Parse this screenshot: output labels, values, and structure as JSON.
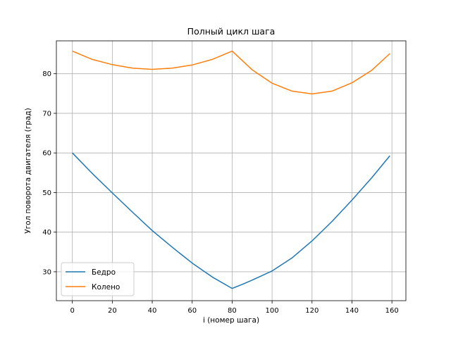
{
  "chart_data": {
    "type": "line",
    "title": "Полный цикл шага",
    "xlabel": "i (номер шага)",
    "ylabel": "Угол поворота двигателя (град)",
    "xlim": [
      -8,
      167
    ],
    "ylim": [
      22.7,
      88.3
    ],
    "xticks": [
      0,
      20,
      40,
      60,
      80,
      100,
      120,
      140,
      160
    ],
    "yticks": [
      30,
      40,
      50,
      60,
      70,
      80
    ],
    "grid": true,
    "legend_position": "lower-left",
    "series": [
      {
        "name": "Бедро",
        "color": "#1f77b4",
        "x": [
          0,
          10,
          20,
          30,
          40,
          50,
          60,
          70,
          80,
          85,
          90,
          100,
          110,
          120,
          130,
          140,
          150,
          159
        ],
        "y": [
          60.0,
          54.8,
          49.9,
          45.1,
          40.4,
          36.2,
          32.2,
          28.7,
          25.8,
          26.8,
          27.9,
          30.2,
          33.5,
          37.8,
          42.7,
          48.1,
          53.8,
          59.3
        ]
      },
      {
        "name": "Колено",
        "color": "#ff7f0e",
        "x": [
          0,
          10,
          20,
          30,
          40,
          50,
          60,
          70,
          80,
          90,
          100,
          110,
          120,
          130,
          140,
          150,
          159
        ],
        "y": [
          85.7,
          83.6,
          82.3,
          81.4,
          81.1,
          81.4,
          82.2,
          83.6,
          85.7,
          81.0,
          77.6,
          75.6,
          74.9,
          75.6,
          77.7,
          80.9,
          85.1
        ]
      }
    ]
  }
}
